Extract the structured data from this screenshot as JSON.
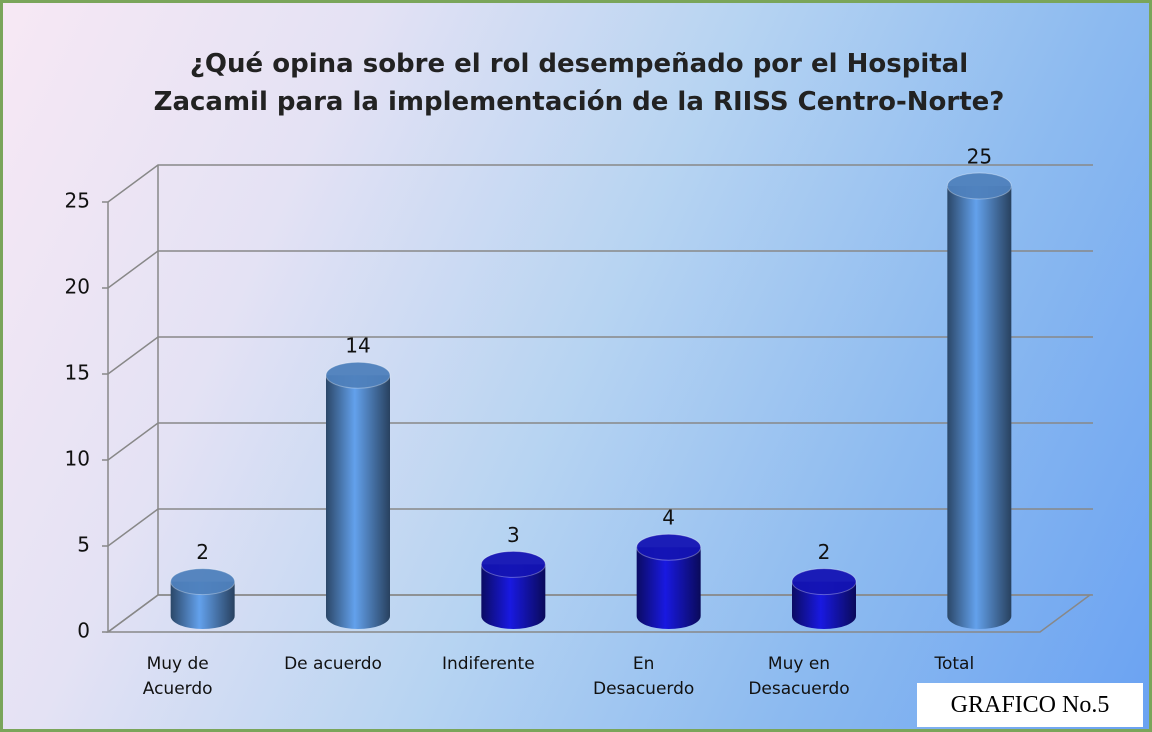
{
  "chart_data": {
    "type": "bar",
    "title": "¿Qué opina sobre el rol desempeñado por el Hospital Zacamil para la implementación de la RIISS Centro-Norte?",
    "categories": [
      "Muy de Acuerdo",
      "De acuerdo",
      "Indiferente",
      "En Desacuerdo",
      "Muy en Desacuerdo",
      "Total"
    ],
    "values": [
      2,
      14,
      3,
      4,
      2,
      25
    ],
    "colors": [
      "#4f81bd",
      "#4f81bd",
      "#1414b4",
      "#1414b4",
      "#1414b4",
      "#4f81bd"
    ],
    "ylim": [
      0,
      25
    ],
    "yticks": [
      0,
      5,
      10,
      15,
      20,
      25
    ],
    "grid": true,
    "annotation": "GRAFICO No.5"
  }
}
